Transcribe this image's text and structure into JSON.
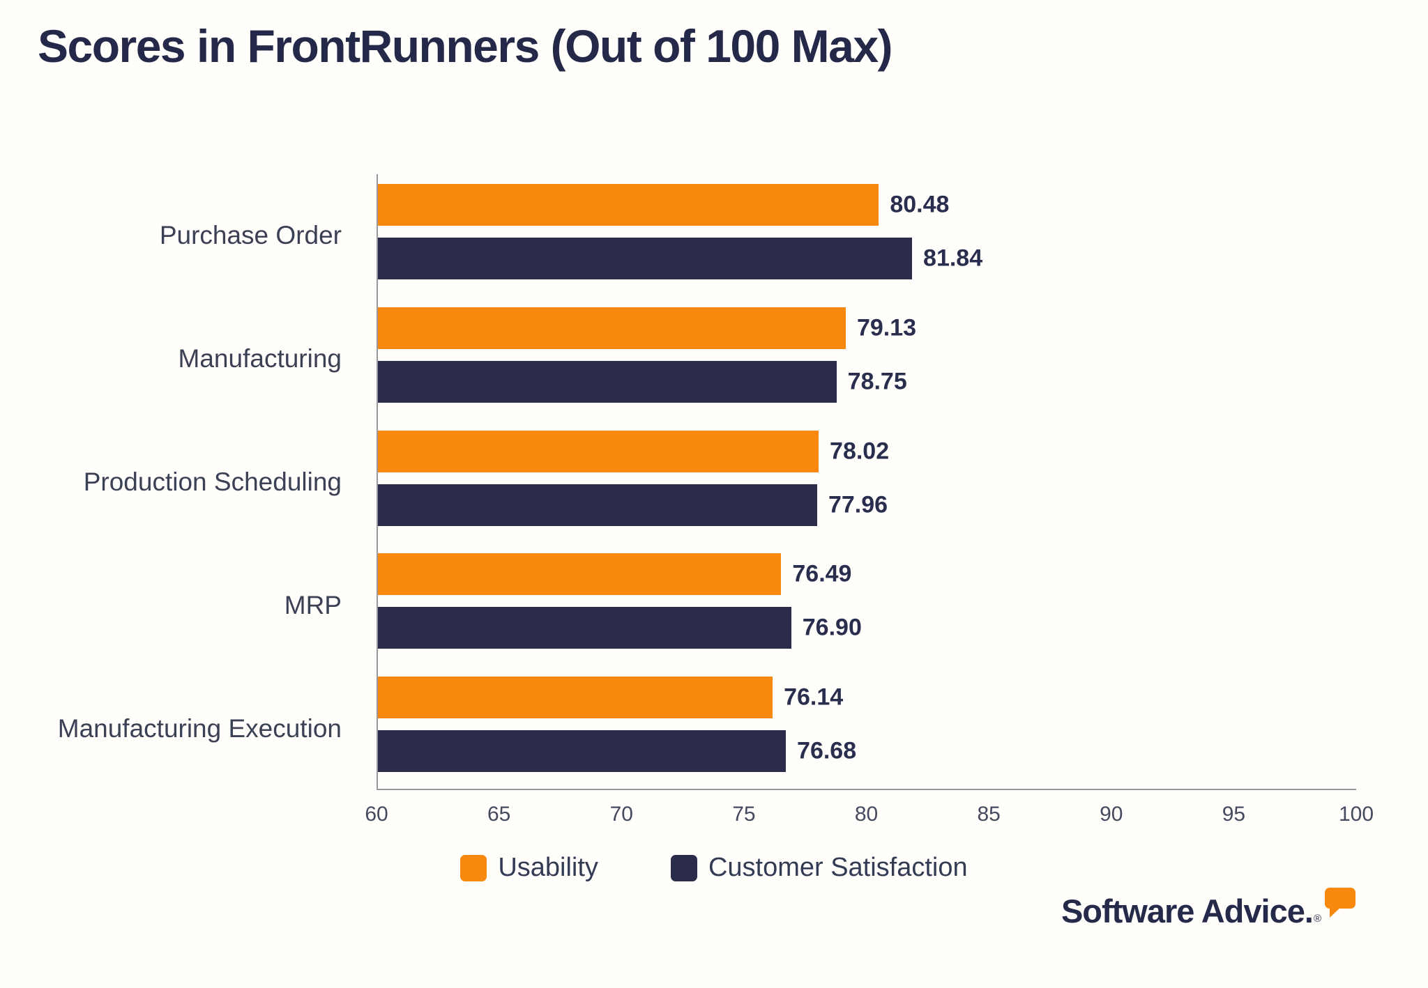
{
  "title": "Scores in FrontRunners (Out of 100 Max)",
  "chart_data": {
    "type": "bar",
    "orientation": "horizontal",
    "title": "Scores in FrontRunners (Out of 100 Max)",
    "categories": [
      "Purchase Order",
      "Manufacturing",
      "Production Scheduling",
      "MRP",
      "Manufacturing Execution"
    ],
    "series": [
      {
        "name": "Usability",
        "color": "#F8890E",
        "values": [
          80.48,
          79.13,
          78.02,
          76.49,
          76.14
        ],
        "labels": [
          "80.48",
          "79.13",
          "78.02",
          "76.49",
          "76.14"
        ]
      },
      {
        "name": "Customer Satisfaction",
        "color": "#2B2B4C",
        "values": [
          81.84,
          78.75,
          77.96,
          76.9,
          76.68
        ],
        "labels": [
          "81.84",
          "78.75",
          "77.96",
          "76.90",
          "76.68"
        ]
      }
    ],
    "xlim": [
      60,
      100
    ],
    "xticks": [
      60,
      65,
      70,
      75,
      80,
      85,
      90,
      95,
      100
    ],
    "grid": false,
    "legend_position": "bottom"
  },
  "branding": {
    "logo_text": "Software Advice.",
    "registered_mark": "®",
    "bubble_color": "#F8890E",
    "text_color": "#262A4A"
  }
}
